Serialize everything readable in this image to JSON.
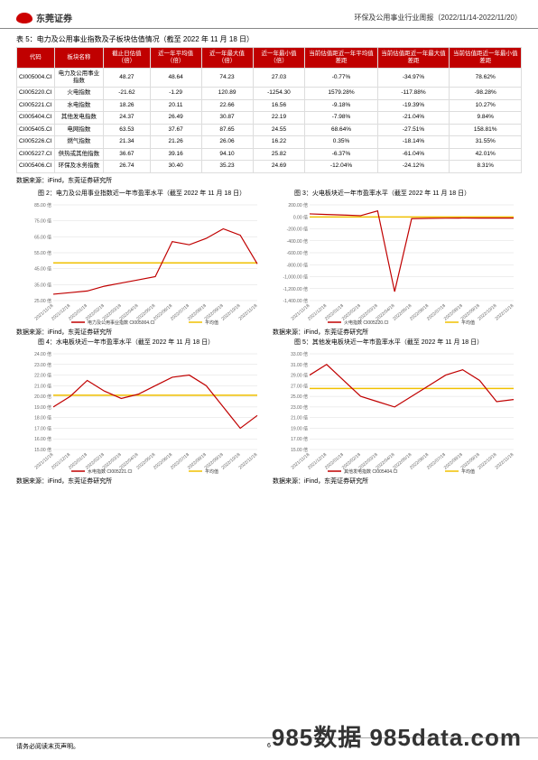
{
  "header": {
    "logo_text": "东莞证券",
    "report_title": "环保及公用事业行业周报（2022/11/14-2022/11/20）"
  },
  "table5": {
    "caption": "表 5：电力及公用事业指数及子板块估值情况（截至 2022 年 11 月 18 日）",
    "columns": [
      "代码",
      "板块名称",
      "截止日估值（倍）",
      "近一年平均值（倍）",
      "近一年最大值（倍）",
      "近一年最小值（倍）",
      "当前估值距近一年平均值差距",
      "当前估值距近一年最大值差距",
      "当前估值距近一年最小值差距"
    ],
    "rows": [
      [
        "CI005004.CI",
        "电力及公用事业指数",
        "48.27",
        "48.64",
        "74.23",
        "27.03",
        "-0.77%",
        "-34.97%",
        "78.62%"
      ],
      [
        "CI005220.CI",
        "火电指数",
        "-21.62",
        "-1.29",
        "120.89",
        "-1254.30",
        "1579.28%",
        "-117.88%",
        "-98.28%"
      ],
      [
        "CI005221.CI",
        "水电指数",
        "18.26",
        "20.11",
        "22.66",
        "16.56",
        "-9.18%",
        "-19.39%",
        "10.27%"
      ],
      [
        "CI005404.CI",
        "其他发电指数",
        "24.37",
        "26.49",
        "30.87",
        "22.19",
        "-7.98%",
        "-21.04%",
        "9.84%"
      ],
      [
        "CI005405.CI",
        "电网指数",
        "63.53",
        "37.67",
        "87.65",
        "24.55",
        "68.64%",
        "-27.51%",
        "158.81%"
      ],
      [
        "CI005226.CI",
        "燃气指数",
        "21.34",
        "21.26",
        "26.06",
        "16.22",
        "0.35%",
        "-18.14%",
        "31.55%"
      ],
      [
        "CI005227.CI",
        "供热或其他指数",
        "36.67",
        "39.16",
        "94.10",
        "25.82",
        "-6.37%",
        "-61.04%",
        "42.01%"
      ],
      [
        "CI005406.CI",
        "环保及水务指数",
        "26.74",
        "30.40",
        "35.23",
        "24.69",
        "-12.04%",
        "-24.12%",
        "8.31%"
      ]
    ],
    "source": "数据来源：iFind，东莞证券研究所"
  },
  "chart2": {
    "title": "图 2：电力及公用事业指数近一年市盈率水平（截至 2022 年 11 月 18 日）",
    "y_ticks": [
      "85.00 倍",
      "75.00 倍",
      "65.00 倍",
      "55.00 倍",
      "45.00 倍",
      "35.00 倍",
      "25.00 倍"
    ],
    "x_ticks": [
      "2021/11/18",
      "2021/12/18",
      "2022/01/18",
      "2022/02/18",
      "2022/03/18",
      "2022/04/18",
      "2022/05/18",
      "2022/06/18",
      "2022/07/18",
      "2022/08/18",
      "2022/09/18",
      "2022/10/18",
      "2022/11/18"
    ],
    "series1_name": "电力及公用事业指数 CI005004.CI",
    "series2_name": "平均值",
    "series1_color": "#c00000",
    "series2_color": "#f0c000",
    "avg_value": 48.64,
    "data": [
      29,
      30,
      31,
      34,
      36,
      38,
      40,
      62,
      60,
      64,
      70,
      66,
      48
    ],
    "y_min": 25,
    "y_max": 85,
    "source": "数据来源：iFind，东莞证券研究所"
  },
  "chart3": {
    "title": "图 3：火电板块近一年市盈率水平（截至 2022 年 11 月 18 日）",
    "y_ticks": [
      "200.00 倍",
      "0.00 倍",
      "-200.00 倍",
      "-400.00 倍",
      "-600.00 倍",
      "-800.00 倍",
      "-1,000.00 倍",
      "-1,200.00 倍",
      "-1,400.00 倍"
    ],
    "x_ticks": [
      "2021/11/18",
      "2021/12/18",
      "2022/01/18",
      "2022/02/18",
      "2022/03/18",
      "2022/04/18",
      "2022/05/18",
      "2022/06/18",
      "2022/07/18",
      "2022/08/18",
      "2022/09/18",
      "2022/10/18",
      "2022/11/18"
    ],
    "series1_name": "火电指数 CI005220.CI",
    "series2_name": "平均值",
    "series1_color": "#c00000",
    "series2_color": "#f0c000",
    "avg_value": -1.29,
    "data": [
      50,
      40,
      30,
      20,
      100,
      -1250,
      -30,
      -25,
      -22,
      -20,
      -21,
      -21,
      -21
    ],
    "y_min": -1400,
    "y_max": 200,
    "source": "数据来源：iFind，东莞证券研究所"
  },
  "chart4": {
    "title": "图 4：水电板块近一年市盈率水平（截至 2022 年 11 月 18 日）",
    "y_ticks": [
      "24.00 倍",
      "23.00 倍",
      "22.00 倍",
      "21.00 倍",
      "20.00 倍",
      "19.00 倍",
      "18.00 倍",
      "17.00 倍",
      "16.00 倍",
      "15.00 倍"
    ],
    "x_ticks": [
      "2021/11/18",
      "2021/12/18",
      "2022/01/18",
      "2022/02/18",
      "2022/03/18",
      "2022/04/18",
      "2022/05/18",
      "2022/06/18",
      "2022/07/18",
      "2022/08/18",
      "2022/09/18",
      "2022/10/18",
      "2022/11/18"
    ],
    "series1_name": "水电指数 CI005221.CI",
    "series2_name": "平均值",
    "series1_color": "#c00000",
    "series2_color": "#f0c000",
    "avg_value": 20.11,
    "data": [
      19,
      20,
      21.5,
      20.5,
      19.8,
      20.2,
      21,
      21.8,
      22,
      21,
      19,
      17,
      18.2
    ],
    "y_min": 15,
    "y_max": 24,
    "source": "数据来源：iFind，东莞证券研究所"
  },
  "chart5": {
    "title": "图 5：其他发电板块近一年市盈率水平（截至 2022 年 11 月 18 日）",
    "y_ticks": [
      "33.00 倍",
      "31.00 倍",
      "29.00 倍",
      "27.00 倍",
      "25.00 倍",
      "23.00 倍",
      "21.00 倍",
      "19.00 倍",
      "17.00 倍",
      "15.00 倍"
    ],
    "x_ticks": [
      "2021/11/18",
      "2021/12/18",
      "2022/01/18",
      "2022/02/18",
      "2022/03/18",
      "2022/04/18",
      "2022/05/18",
      "2022/06/18",
      "2022/07/18",
      "2022/08/18",
      "2022/09/18",
      "2022/10/18",
      "2022/11/18"
    ],
    "series1_name": "其他发电指数 CI005404.CI",
    "series2_name": "平均值",
    "series1_color": "#c00000",
    "series2_color": "#f0c000",
    "avg_value": 26.49,
    "data": [
      29,
      31,
      28,
      25,
      24,
      23,
      25,
      27,
      29,
      30,
      28,
      24,
      24.4
    ],
    "y_min": 15,
    "y_max": 33,
    "source": "数据来源：iFind，东莞证券研究所"
  },
  "footer": {
    "left": "请务必阅读末页声明。",
    "page": "6",
    "watermark": "985数据 985data.com"
  }
}
